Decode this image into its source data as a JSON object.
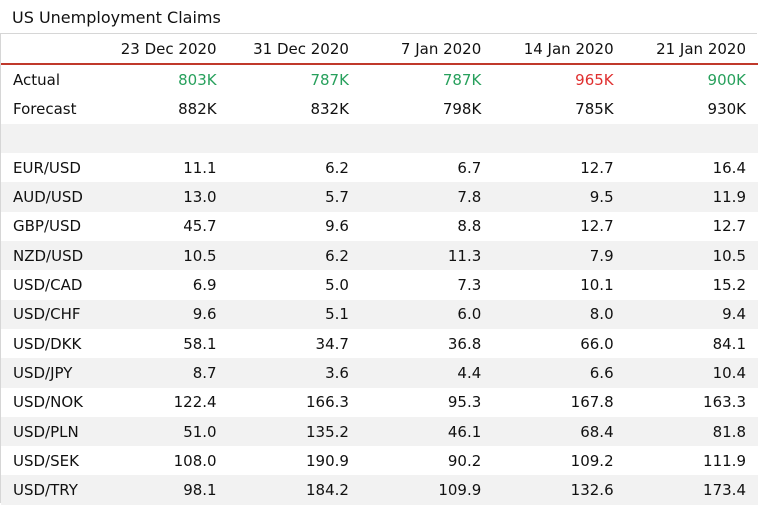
{
  "title": "US Unemployment Claims",
  "header": {
    "label": "",
    "dates": [
      "23 Dec 2020",
      "31 Dec 2020",
      "7 Jan 2020",
      "14 Jan 2020",
      "21 Jan 2020"
    ]
  },
  "actual": {
    "label": "Actual",
    "values": [
      "803K",
      "787K",
      "787K",
      "965K",
      "900K"
    ],
    "colors": [
      "#27a05c",
      "#27a05c",
      "#27a05c",
      "#e02f2f",
      "#27a05c"
    ]
  },
  "forecast": {
    "label": "Forecast",
    "values": [
      "882K",
      "832K",
      "798K",
      "785K",
      "930K"
    ]
  },
  "pairs": [
    {
      "label": "EUR/USD",
      "values": [
        "11.1",
        "6.2",
        "6.7",
        "12.7",
        "16.4"
      ]
    },
    {
      "label": "AUD/USD",
      "values": [
        "13.0",
        "5.7",
        "7.8",
        "9.5",
        "11.9"
      ]
    },
    {
      "label": "GBP/USD",
      "values": [
        "45.7",
        "9.6",
        "8.8",
        "12.7",
        "12.7"
      ]
    },
    {
      "label": "NZD/USD",
      "values": [
        "10.5",
        "6.2",
        "11.3",
        "7.9",
        "10.5"
      ]
    },
    {
      "label": "USD/CAD",
      "values": [
        "6.9",
        "5.0",
        "7.3",
        "10.1",
        "15.2"
      ]
    },
    {
      "label": "USD/CHF",
      "values": [
        "9.6",
        "5.1",
        "6.0",
        "8.0",
        "9.4"
      ]
    },
    {
      "label": "USD/DKK",
      "values": [
        "58.1",
        "34.7",
        "36.8",
        "66.0",
        "84.1"
      ]
    },
    {
      "label": "USD/JPY",
      "values": [
        "8.7",
        "3.6",
        "4.4",
        "6.6",
        "10.4"
      ]
    },
    {
      "label": "USD/NOK",
      "values": [
        "122.4",
        "166.3",
        "95.3",
        "167.8",
        "163.3"
      ]
    },
    {
      "label": "USD/PLN",
      "values": [
        "51.0",
        "135.2",
        "46.1",
        "68.4",
        "81.8"
      ]
    },
    {
      "label": "USD/SEK",
      "values": [
        "108.0",
        "190.9",
        "90.2",
        "109.2",
        "111.9"
      ]
    },
    {
      "label": "USD/TRY",
      "values": [
        "98.1",
        "184.2",
        "109.9",
        "132.6",
        "173.4"
      ]
    }
  ]
}
